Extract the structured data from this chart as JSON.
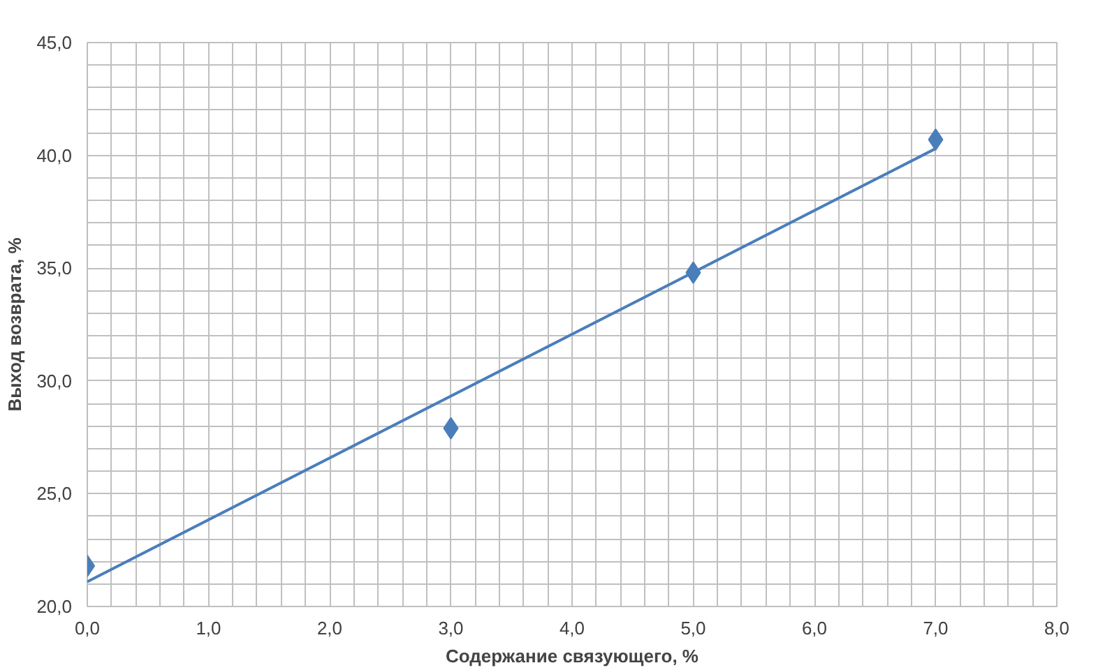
{
  "chart_data": {
    "type": "scatter",
    "xlabel": "Содержание связующего, %",
    "ylabel": "Выход возврата, %",
    "xlim": [
      0,
      8
    ],
    "ylim": [
      20,
      45
    ],
    "xticks": [
      {
        "value": 0,
        "label": "0,0"
      },
      {
        "value": 0.2,
        "label": null
      },
      {
        "value": 0.4,
        "label": null
      },
      {
        "value": 0.6,
        "label": null
      },
      {
        "value": 0.8,
        "label": null
      },
      {
        "value": 1,
        "label": "1,0"
      },
      {
        "value": 1.2,
        "label": null
      },
      {
        "value": 1.4,
        "label": null
      },
      {
        "value": 1.6,
        "label": null
      },
      {
        "value": 1.8,
        "label": null
      },
      {
        "value": 2,
        "label": "2,0"
      },
      {
        "value": 2.2,
        "label": null
      },
      {
        "value": 2.4,
        "label": null
      },
      {
        "value": 2.6,
        "label": null
      },
      {
        "value": 2.8,
        "label": null
      },
      {
        "value": 3,
        "label": "3,0"
      },
      {
        "value": 3.2,
        "label": null
      },
      {
        "value": 3.4,
        "label": null
      },
      {
        "value": 3.6,
        "label": null
      },
      {
        "value": 3.8,
        "label": null
      },
      {
        "value": 4,
        "label": "4,0"
      },
      {
        "value": 4.2,
        "label": null
      },
      {
        "value": 4.4,
        "label": null
      },
      {
        "value": 4.6,
        "label": null
      },
      {
        "value": 4.8,
        "label": null
      },
      {
        "value": 5,
        "label": "5,0"
      },
      {
        "value": 5.2,
        "label": null
      },
      {
        "value": 5.4,
        "label": null
      },
      {
        "value": 5.6,
        "label": null
      },
      {
        "value": 5.8,
        "label": null
      },
      {
        "value": 6,
        "label": "6,0"
      },
      {
        "value": 6.2,
        "label": null
      },
      {
        "value": 6.4,
        "label": null
      },
      {
        "value": 6.6,
        "label": null
      },
      {
        "value": 6.8,
        "label": null
      },
      {
        "value": 7,
        "label": "7,0"
      },
      {
        "value": 7.2,
        "label": null
      },
      {
        "value": 7.4,
        "label": null
      },
      {
        "value": 7.6,
        "label": null
      },
      {
        "value": 7.8,
        "label": null
      },
      {
        "value": 8,
        "label": "8,0"
      }
    ],
    "yticks": [
      {
        "value": 20,
        "label": "20,0"
      },
      {
        "value": 21,
        "label": null
      },
      {
        "value": 22,
        "label": null
      },
      {
        "value": 23,
        "label": null
      },
      {
        "value": 24,
        "label": null
      },
      {
        "value": 25,
        "label": "25,0"
      },
      {
        "value": 26,
        "label": null
      },
      {
        "value": 27,
        "label": null
      },
      {
        "value": 28,
        "label": null
      },
      {
        "value": 29,
        "label": null
      },
      {
        "value": 30,
        "label": "30,0"
      },
      {
        "value": 31,
        "label": null
      },
      {
        "value": 32,
        "label": null
      },
      {
        "value": 33,
        "label": null
      },
      {
        "value": 34,
        "label": null
      },
      {
        "value": 35,
        "label": "35,0"
      },
      {
        "value": 36,
        "label": null
      },
      {
        "value": 37,
        "label": null
      },
      {
        "value": 38,
        "label": null
      },
      {
        "value": 39,
        "label": null
      },
      {
        "value": 40,
        "label": "40,0"
      },
      {
        "value": 41,
        "label": null
      },
      {
        "value": 42,
        "label": null
      },
      {
        "value": 43,
        "label": null
      },
      {
        "value": 44,
        "label": null
      },
      {
        "value": 45,
        "label": "45,0"
      }
    ],
    "grid": true,
    "series": [
      {
        "color": "#4a7ebb",
        "marker": "diamond",
        "x": [
          0,
          3,
          5,
          7
        ],
        "values": [
          21.8,
          27.9,
          34.8,
          40.7
        ]
      },
      {
        "type": "line",
        "color": "#4a7ebb",
        "line_style": "solid",
        "x": [
          0,
          7
        ],
        "values": [
          21.1,
          40.3
        ]
      }
    ]
  }
}
